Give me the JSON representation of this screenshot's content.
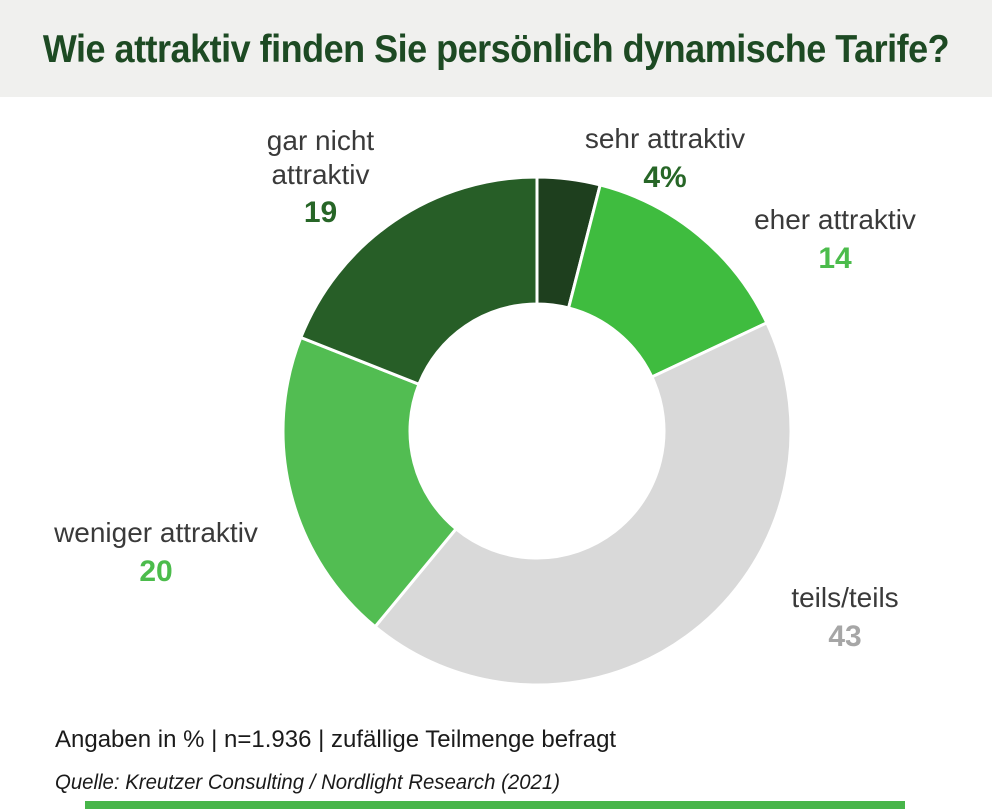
{
  "title": "Wie attraktiv finden Sie persönlich dynamische Tarife?",
  "footer": {
    "note": "Angaben in % | n=1.936 | zufällige Teilmenge befragt",
    "source": "Quelle: Kreutzer Consulting / Nordlight Research (2021)"
  },
  "colors": {
    "header_bg": "#F0F0EE",
    "title_text": "#1D4A23",
    "label_text": "#3A3A3A",
    "segment_divider": "#FFFFFF",
    "footer_bar": "#47B549"
  },
  "chart_data": {
    "type": "pie",
    "subtype": "donut",
    "title": "Wie attraktiv finden Sie persönlich dynamische Tarife?",
    "unit": "%",
    "start_angle_deg": 0,
    "direction": "clockwise",
    "inner_radius_ratio": 0.5,
    "legend_position": "none",
    "segments": [
      {
        "label": "sehr attraktiv",
        "value": 4,
        "display_value": "4%",
        "color": "#1E3F1E",
        "value_color": "#276627"
      },
      {
        "label": "eher attraktiv",
        "value": 14,
        "display_value": "14",
        "color": "#3FBC3F",
        "value_color": "#4CBC4C"
      },
      {
        "label": "teils/teils",
        "value": 43,
        "display_value": "43",
        "color": "#D9D9D9",
        "value_color": "#A6A6A6"
      },
      {
        "label": "weniger attraktiv",
        "value": 20,
        "display_value": "20",
        "color": "#52BD52",
        "value_color": "#4CBC4C"
      },
      {
        "label": "gar nicht attraktiv",
        "value": 19,
        "display_value": "19",
        "color": "#275E27",
        "value_color": "#276627"
      }
    ]
  }
}
